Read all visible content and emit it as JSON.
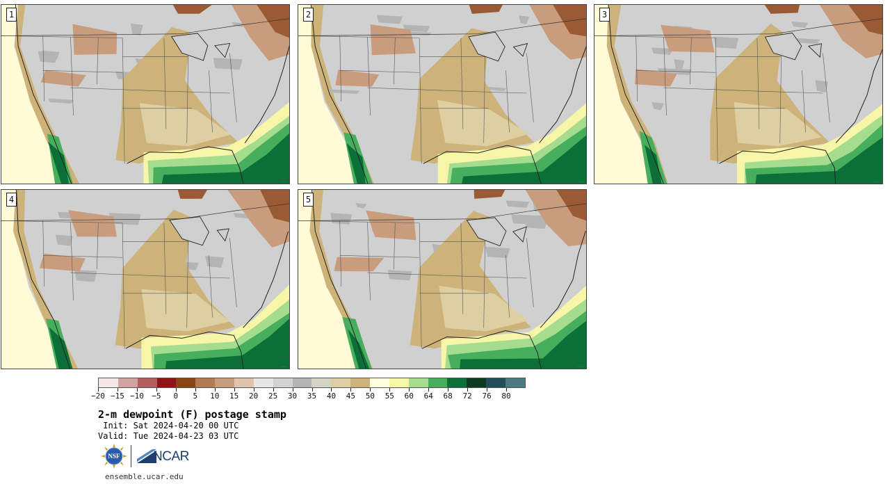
{
  "panels": [
    {
      "label": "1"
    },
    {
      "label": "2"
    },
    {
      "label": "3"
    },
    {
      "label": "4"
    },
    {
      "label": "5"
    }
  ],
  "colorbar": {
    "colors": [
      "#f2e6e6",
      "#d4a1a1",
      "#b05e5e",
      "#8c1515",
      "#8b4513",
      "#b27a53",
      "#c89c7c",
      "#dfc3ae",
      "#e6e6e6",
      "#d2d2d2",
      "#b4b4b4",
      "#d4d4c4",
      "#decfa3",
      "#cdb379",
      "#ffffde",
      "#f7f5a8",
      "#a6dc8e",
      "#46ae5c",
      "#0a7038",
      "#0b3a20",
      "#224e5a",
      "#4e7b82"
    ],
    "labels": [
      "−20",
      "−15",
      "−10",
      "−5",
      "0",
      "5",
      "10",
      "15",
      "20",
      "25",
      "30",
      "35",
      "40",
      "45",
      "50",
      "55",
      "60",
      "64",
      "68",
      "72",
      "76",
      "80"
    ]
  },
  "title": "2-m dewpoint (F) postage stamp",
  "init_text": " Init: Sat 2024-04-20 00 UTC",
  "valid_text": "Valid: Tue 2024-04-23 03 UTC",
  "logo": {
    "nsf_text": "NSF",
    "ncar_text": "NCAR"
  },
  "url": "ensemble.ucar.edu",
  "map_colors": {
    "far_west_yellow": "#fffbd6",
    "tan_moist": "#cdb379",
    "light_tan": "#decfa3",
    "gray_dry": "#d0d0d0",
    "dark_gray": "#b4b4b4",
    "brown_dry": "#c89c7c",
    "dark_brown": "#9a5a33",
    "pale_yellow": "#f7f5a8",
    "light_green": "#a6dc8e",
    "green": "#46ae5c",
    "dark_green": "#0a7038"
  }
}
